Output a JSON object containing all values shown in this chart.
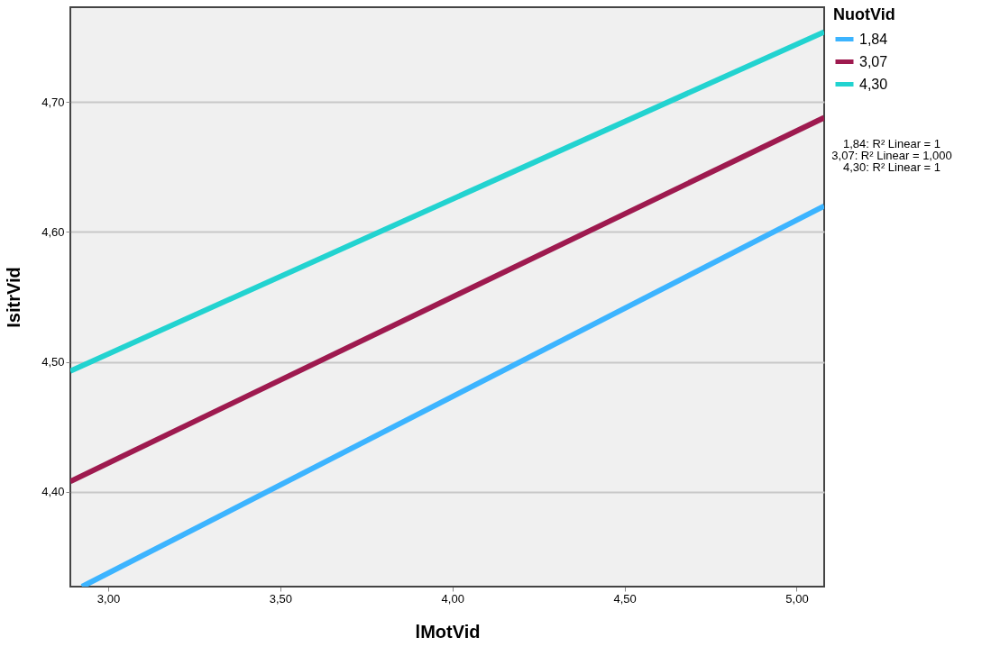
{
  "chart_data": {
    "type": "line",
    "xlabel": "lMotVid",
    "ylabel": "IsitrVid",
    "legend_title": "NuotVid",
    "xlim": [
      2.89,
      5.08
    ],
    "ylim": [
      4.327,
      4.773
    ],
    "xticks": [
      {
        "value": 3,
        "label": "3,00"
      },
      {
        "value": 3.5,
        "label": "3,50"
      },
      {
        "value": 4,
        "label": "4,00"
      },
      {
        "value": 4.5,
        "label": "4,50"
      },
      {
        "value": 5,
        "label": "5,00"
      }
    ],
    "yticks": [
      {
        "value": 4.4,
        "label": "4,40"
      },
      {
        "value": 4.5,
        "label": "4,50"
      },
      {
        "value": 4.6,
        "label": "4,60"
      },
      {
        "value": 4.7,
        "label": "4,70"
      }
    ],
    "grid": "y",
    "legend": "right",
    "marker": "none",
    "line_style": "solid",
    "series": [
      {
        "name": "1,84",
        "color": "#3cb4ff",
        "x": [
          2.924,
          5.08
        ],
        "values": [
          4.327,
          4.62
        ]
      },
      {
        "name": "3,07",
        "color": "#9e1a4f",
        "x": [
          2.89,
          5.08
        ],
        "values": [
          4.408,
          4.688
        ]
      },
      {
        "name": "4,30",
        "color": "#22d3d0",
        "x": [
          2.89,
          5.08
        ],
        "values": [
          4.493,
          4.754
        ]
      }
    ],
    "annotations": [
      "1,84: R² Linear = 1",
      "3,07: R² Linear = 1,000",
      "4,30: R² Linear = 1"
    ]
  }
}
